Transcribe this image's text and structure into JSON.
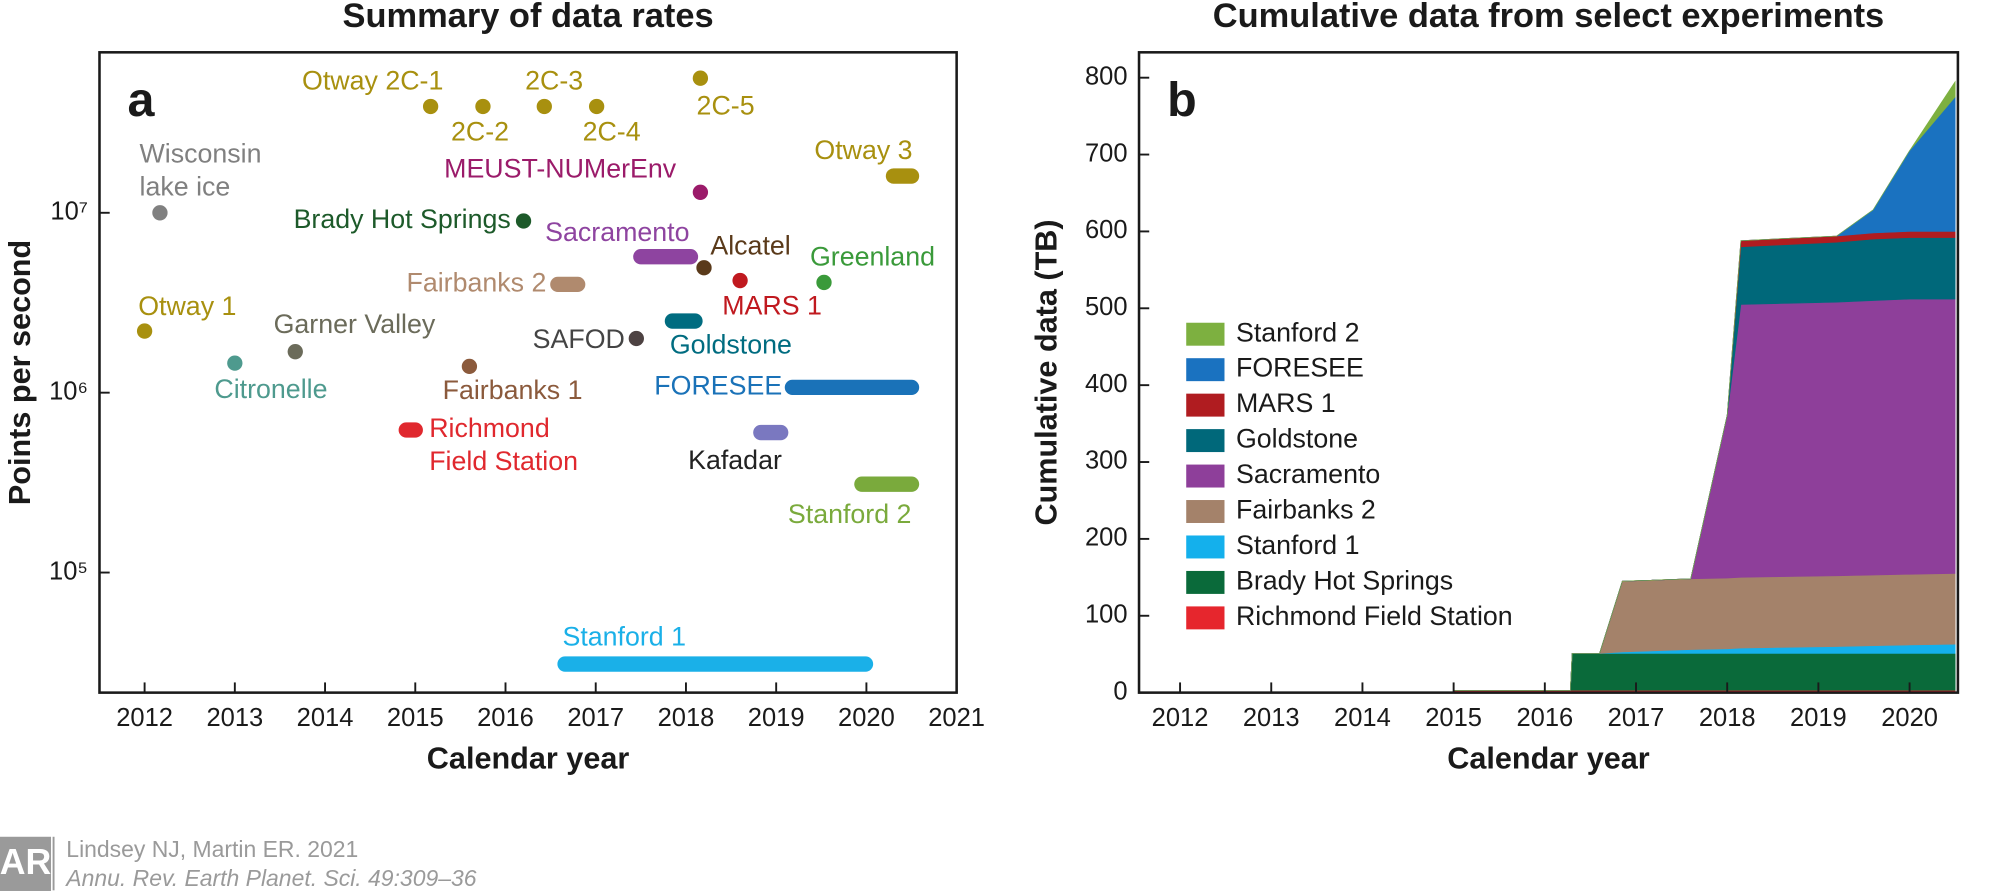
{
  "chart_data": [
    {
      "type": "timeline",
      "title": "Summary of data rates",
      "panel_label": "a",
      "x_label": "Calendar year",
      "y_label": "Points per second",
      "xlim": [
        2011.5,
        2021
      ],
      "xticks": [
        2012,
        2013,
        2014,
        2015,
        2016,
        2017,
        2018,
        2019,
        2020,
        2021
      ],
      "ylim": [
        21500,
        78000000
      ],
      "log_y": true,
      "yticks": [
        {
          "value": 100000,
          "label": "10⁵"
        },
        {
          "value": 1000000,
          "label": "10⁶"
        },
        {
          "value": 10000000,
          "label": "10⁷"
        }
      ],
      "series": [
        {
          "name": "Otway 1",
          "color": "#a8900f",
          "x": [
            2012.0
          ],
          "values": [
            2200000
          ]
        },
        {
          "name": "Wisconsin lake ice",
          "color": "#808080",
          "x": [
            2012.17
          ],
          "values": [
            10000000
          ]
        },
        {
          "name": "Citronelle",
          "color": "#4e9a8e",
          "x": [
            2013.0
          ],
          "values": [
            1460000
          ]
        },
        {
          "name": "Garner Valley",
          "color": "#6b6b5a",
          "x": [
            2013.67
          ],
          "values": [
            1690000
          ]
        },
        {
          "name": "Otway 2C-1",
          "color": "#a8900f",
          "x": [
            2015.17
          ],
          "values": [
            39000000
          ]
        },
        {
          "name": "2C-2",
          "color": "#a8900f",
          "x": [
            2015.75
          ],
          "values": [
            39000000
          ]
        },
        {
          "name": "2C-3",
          "color": "#a8900f",
          "x": [
            2016.43
          ],
          "values": [
            39000000
          ]
        },
        {
          "name": "2C-4",
          "color": "#a8900f",
          "x": [
            2017.01
          ],
          "values": [
            39000000
          ]
        },
        {
          "name": "2C-5",
          "color": "#a8900f",
          "x": [
            2018.16
          ],
          "values": [
            56000000
          ]
        },
        {
          "name": "Otway 3",
          "color": "#a8900f",
          "x": [
            2020.3,
            2020.5
          ],
          "values": [
            16000000,
            16000000
          ]
        },
        {
          "name": "MEUST-NUMerEnv",
          "color": "#9b1b6a",
          "x": [
            2018.16
          ],
          "values": [
            13000000
          ]
        },
        {
          "name": "Brady Hot Springs",
          "color": "#1d5a2a",
          "x": [
            2016.2
          ],
          "values": [
            9000000
          ]
        },
        {
          "name": "Sacramento",
          "color": "#8e44a0",
          "x": [
            2017.5,
            2018.05
          ],
          "values": [
            5700000,
            5700000
          ]
        },
        {
          "name": "Alcatel",
          "color": "#5a3a1a",
          "x": [
            2018.2
          ],
          "values": [
            4950000
          ]
        },
        {
          "name": "Fairbanks 2",
          "color": "#b08a6e",
          "x": [
            2016.58,
            2016.8
          ],
          "values": [
            4000000,
            4000000
          ]
        },
        {
          "name": "MARS 1",
          "color": "#c0191f",
          "x": [
            2018.6
          ],
          "values": [
            4200000
          ]
        },
        {
          "name": "Greenland",
          "color": "#3a9a3a",
          "x": [
            2019.53
          ],
          "values": [
            4100000
          ]
        },
        {
          "name": "Goldstone",
          "color": "#006c80",
          "x": [
            2017.85,
            2018.1
          ],
          "values": [
            2500000,
            2500000
          ]
        },
        {
          "name": "SAFOD",
          "color": "#4d4242",
          "x": [
            2017.45
          ],
          "values": [
            2000000
          ]
        },
        {
          "name": "Fairbanks 1",
          "color": "#8b5a3c",
          "x": [
            2015.6
          ],
          "values": [
            1400000
          ]
        },
        {
          "name": "FORESEE",
          "color": "#1a72b8",
          "x": [
            2019.18,
            2020.5
          ],
          "values": [
            1070000,
            1070000
          ]
        },
        {
          "name": "Richmond Field Station",
          "color": "#e0282e",
          "x": [
            2014.9,
            2015.0
          ],
          "values": [
            620000,
            620000
          ]
        },
        {
          "name": "Kafadar",
          "color": "#7a78c0",
          "x": [
            2018.83,
            2019.05
          ],
          "values": [
            600000,
            600000
          ]
        },
        {
          "name": "Stanford 2",
          "color": "#7aaa3c",
          "x": [
            2019.95,
            2020.5
          ],
          "values": [
            310000,
            310000
          ]
        },
        {
          "name": "Stanford 1",
          "color": "#1ab0e8",
          "x": [
            2016.66,
            2019.99
          ],
          "values": [
            31000,
            31000
          ]
        }
      ]
    },
    {
      "type": "stacked_area",
      "title": "Cumulative data from select experiments",
      "panel_label": "b",
      "x_label": "Calendar year",
      "y_label": "Cumulative data (TB)",
      "xlim": [
        2011.55,
        2020.53
      ],
      "xticks": [
        2012,
        2013,
        2014,
        2015,
        2016,
        2017,
        2018,
        2019,
        2020
      ],
      "ylim": [
        0,
        833
      ],
      "yticks": [
        0,
        100,
        200,
        300,
        400,
        500,
        600,
        700,
        800
      ],
      "legend_position": "left",
      "x": [
        2015.0,
        2016.28,
        2016.3,
        2016.6,
        2016.85,
        2017.6,
        2018.0,
        2018.15,
        2019.2,
        2019.6,
        2020.0,
        2020.5
      ],
      "series": [
        {
          "name": "Richmond Field Station",
          "color": "#e6262d",
          "values": [
            3,
            3,
            3,
            3,
            3,
            3,
            3,
            3,
            3,
            3,
            3,
            3
          ]
        },
        {
          "name": "Brady Hot Springs",
          "color": "#0a6a3a",
          "values": [
            0,
            0,
            48,
            48,
            48,
            48,
            48,
            48,
            48,
            48,
            48,
            48
          ]
        },
        {
          "name": "Stanford 1",
          "color": "#14b0ec",
          "values": [
            0,
            0,
            0,
            0,
            2,
            5,
            6,
            7,
            9,
            10,
            11,
            12
          ]
        },
        {
          "name": "Fairbanks 2",
          "color": "#a4826a",
          "values": [
            0,
            0,
            0,
            0,
            92,
            92,
            92,
            92,
            92,
            92,
            92,
            92
          ]
        },
        {
          "name": "Sacramento",
          "color": "#8e3f9a",
          "values": [
            0,
            0,
            0,
            0,
            0,
            0,
            212,
            355,
            356,
            357,
            358,
            357
          ]
        },
        {
          "name": "Goldstone",
          "color": "#00687a",
          "values": [
            0,
            0,
            0,
            0,
            0,
            0,
            0,
            75,
            78,
            80,
            80,
            80
          ]
        },
        {
          "name": "MARS 1",
          "color": "#b01c20",
          "values": [
            0,
            0,
            0,
            0,
            0,
            0,
            0,
            8,
            8,
            8,
            8,
            8
          ]
        },
        {
          "name": "FORESEE",
          "color": "#1a72c0",
          "values": [
            0,
            0,
            0,
            0,
            0,
            0,
            0,
            0,
            0,
            30,
            105,
            175
          ]
        },
        {
          "name": "Stanford 2",
          "color": "#7db040",
          "values": [
            0,
            0,
            0,
            0,
            0,
            0,
            0,
            0,
            0,
            0,
            0,
            20
          ]
        }
      ]
    }
  ],
  "footer": {
    "logo": "AR",
    "authors": "Lindsey NJ, Martin ER. 2021",
    "journal": "Annu. Rev. Earth Planet. Sci. 49:309–36"
  }
}
